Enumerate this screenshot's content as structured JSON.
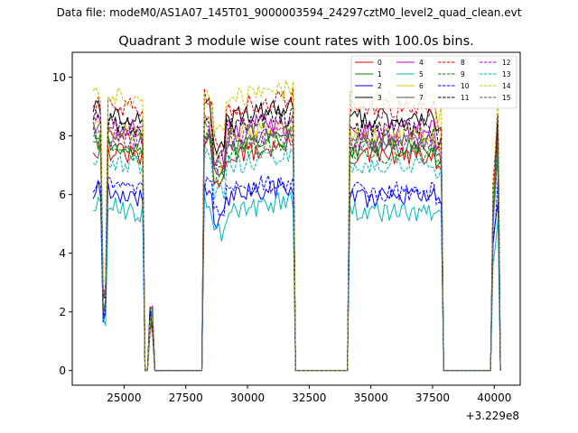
{
  "figure": {
    "suptitle": "Data file: modeM0/AS1A07_145T01_9000003594_24297cztM0_level2_quad_clean.evt"
  },
  "chart_data": {
    "type": "line",
    "title": "Quadrant 3 module wise count rates with 100.0s bins.",
    "xlabel": "",
    "ylabel": "",
    "x_offset_label": "+3.229e8",
    "xlim": [
      22900,
      41050
    ],
    "ylim": [
      -0.5,
      10.85
    ],
    "x_ticks": [
      25000,
      27500,
      30000,
      32500,
      35000,
      37500,
      40000
    ],
    "x_tick_labels": [
      "25000",
      "27500",
      "30000",
      "32500",
      "35000",
      "37500",
      "40000"
    ],
    "y_ticks": [
      0,
      2,
      4,
      6,
      8,
      10
    ],
    "y_tick_labels": [
      "0",
      "2",
      "4",
      "6",
      "8",
      "10"
    ],
    "legend_position": "top-right",
    "segments": [
      [
        23750,
        25800
      ],
      [
        28250,
        31900
      ],
      [
        34100,
        37850
      ],
      [
        39900,
        40200
      ]
    ],
    "series": [
      {
        "name": "0",
        "color": "#e00000",
        "dash": "solid",
        "level": 7.3
      },
      {
        "name": "1",
        "color": "#008000",
        "dash": "solid",
        "level": 7.6
      },
      {
        "name": "2",
        "color": "#0000ff",
        "dash": "solid",
        "level": 5.9
      },
      {
        "name": "3",
        "color": "#000000",
        "dash": "solid",
        "level": 8.6
      },
      {
        "name": "4",
        "color": "#c000c0",
        "dash": "solid",
        "level": 8.2
      },
      {
        "name": "5",
        "color": "#00b8b8",
        "dash": "solid",
        "level": 5.4
      },
      {
        "name": "6",
        "color": "#c8c800",
        "dash": "solid",
        "level": 8.0
      },
      {
        "name": "7",
        "color": "#555555",
        "dash": "solid",
        "level": 7.9
      },
      {
        "name": "8",
        "color": "#e00000",
        "dash": "dashed",
        "level": 8.9
      },
      {
        "name": "9",
        "color": "#008000",
        "dash": "dashed",
        "level": 7.4
      },
      {
        "name": "10",
        "color": "#0000ff",
        "dash": "dashed",
        "level": 6.1
      },
      {
        "name": "11",
        "color": "#000000",
        "dash": "dashed",
        "level": 8.3
      },
      {
        "name": "12",
        "color": "#c000c0",
        "dash": "dashed",
        "level": 7.8
      },
      {
        "name": "13",
        "color": "#00b8b8",
        "dash": "dashed",
        "level": 7.0
      },
      {
        "name": "14",
        "color": "#c8c800",
        "dash": "dashed",
        "level": 9.2
      },
      {
        "name": "15",
        "color": "#555555",
        "dash": "dashed",
        "level": 7.7
      }
    ]
  }
}
